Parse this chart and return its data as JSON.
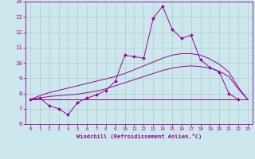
{
  "xlabel": "Windchill (Refroidissement éolien,°C)",
  "xlim": [
    -0.5,
    23.5
  ],
  "ylim": [
    6,
    14
  ],
  "xticks": [
    0,
    1,
    2,
    3,
    4,
    5,
    6,
    7,
    8,
    9,
    10,
    11,
    12,
    13,
    14,
    15,
    16,
    17,
    18,
    19,
    20,
    21,
    22,
    23
  ],
  "yticks": [
    6,
    7,
    8,
    9,
    10,
    11,
    12,
    13,
    14
  ],
  "bg_color": "#cce8ec",
  "line_color": "#990099",
  "grid_color": "#aacccc",
  "series": {
    "line1_x": [
      0,
      1,
      2,
      3,
      4,
      5,
      6,
      7,
      8,
      9,
      10,
      11,
      12,
      13,
      14,
      15,
      16,
      17,
      18,
      19,
      20,
      21,
      22
    ],
    "line1_y": [
      7.6,
      7.7,
      7.2,
      7.0,
      6.6,
      7.4,
      7.7,
      7.9,
      8.2,
      8.8,
      10.5,
      10.4,
      10.3,
      12.9,
      13.7,
      12.2,
      11.6,
      11.8,
      10.2,
      9.7,
      9.4,
      8.0,
      7.6
    ],
    "line2": [
      7.6,
      7.6,
      7.6,
      7.6,
      7.6,
      7.6,
      7.6,
      7.6,
      7.6,
      7.6,
      7.6,
      7.6,
      7.6,
      7.6,
      7.6,
      7.6,
      7.6,
      7.6,
      7.6,
      7.6,
      7.6,
      7.6,
      7.6,
      7.6
    ],
    "line3": [
      7.6,
      7.7,
      7.8,
      7.85,
      7.9,
      7.95,
      8.05,
      8.15,
      8.3,
      8.5,
      8.7,
      8.9,
      9.1,
      9.3,
      9.5,
      9.65,
      9.75,
      9.8,
      9.75,
      9.65,
      9.45,
      9.1,
      8.3,
      7.6
    ],
    "line4": [
      7.6,
      7.85,
      8.05,
      8.2,
      8.35,
      8.5,
      8.65,
      8.8,
      8.95,
      9.1,
      9.3,
      9.55,
      9.8,
      10.05,
      10.3,
      10.5,
      10.6,
      10.6,
      10.5,
      10.25,
      9.9,
      9.4,
      8.4,
      7.6
    ]
  }
}
